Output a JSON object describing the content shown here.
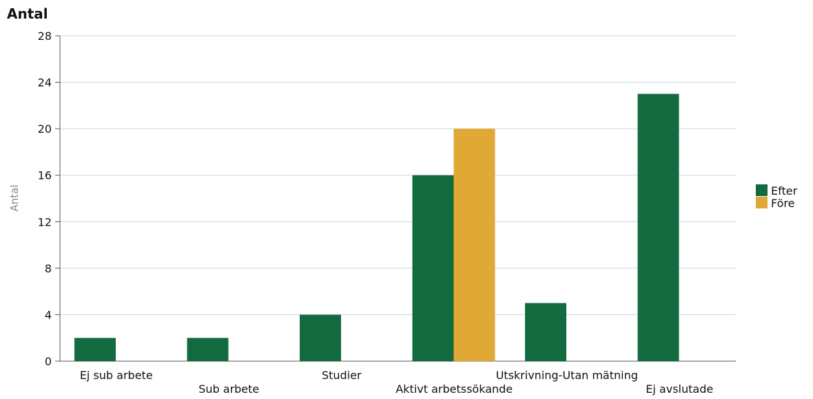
{
  "chart_data": {
    "type": "bar",
    "title": "Antal",
    "ylabel": "Antal",
    "xlabel": "",
    "ylim": [
      0,
      28
    ],
    "yticks": [
      0,
      4,
      8,
      12,
      16,
      20,
      24,
      28
    ],
    "grid": true,
    "legend_position": "right",
    "categories": [
      "Ej sub arbete",
      "Sub arbete",
      "Studier",
      "Aktivt arbetssökande",
      "Utskrivning-Utan mätning",
      "Ej avslutade"
    ],
    "series": [
      {
        "name": "Efter",
        "color": "#136a3f",
        "values": [
          2,
          2,
          4,
          16,
          5,
          23
        ]
      },
      {
        "name": "Före",
        "color": "#e0a835",
        "values": [
          null,
          null,
          null,
          20,
          null,
          null
        ]
      }
    ]
  }
}
